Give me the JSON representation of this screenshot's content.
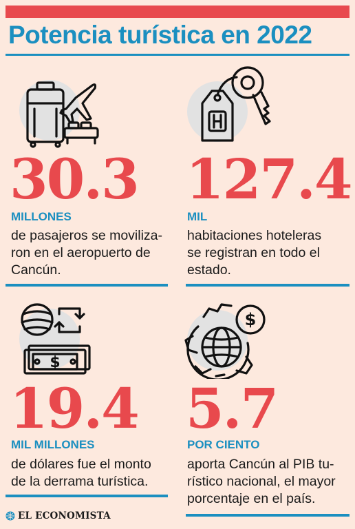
{
  "header": {
    "title": "Potencia turística en 2022"
  },
  "stats": [
    {
      "value": "30.3",
      "unit": "MILLONES",
      "lines": [
        "de pasajeros se moviliza-",
        "ron en el aeropuerto de",
        "Cancún."
      ],
      "icon": "travel-luggage-plane-bed-icon"
    },
    {
      "value": "127.4",
      "unit": "MIL",
      "lines": [
        "habitaciones hoteleras",
        "se registran en todo el",
        "estado."
      ],
      "icon": "hotel-key-icon"
    },
    {
      "value": "19.4",
      "unit": "MIL MILLONES",
      "lines": [
        "de dólares fue el monto",
        "de la derrama turística."
      ],
      "icon": "exchange-money-icon"
    },
    {
      "value": "5.7",
      "unit": "POR CIENTO",
      "lines": [
        "aporta Cancún al PIB tu-",
        "rístico nacional, el mayor",
        "porcentaje en el país."
      ],
      "icon": "globe-gear-dollar-icon"
    }
  ],
  "footer": {
    "logo_text": "EL ECONOMISTA"
  },
  "colors": {
    "accent_red": "#e8494d",
    "accent_blue": "#1b8fc0",
    "background": "#fde9de"
  }
}
